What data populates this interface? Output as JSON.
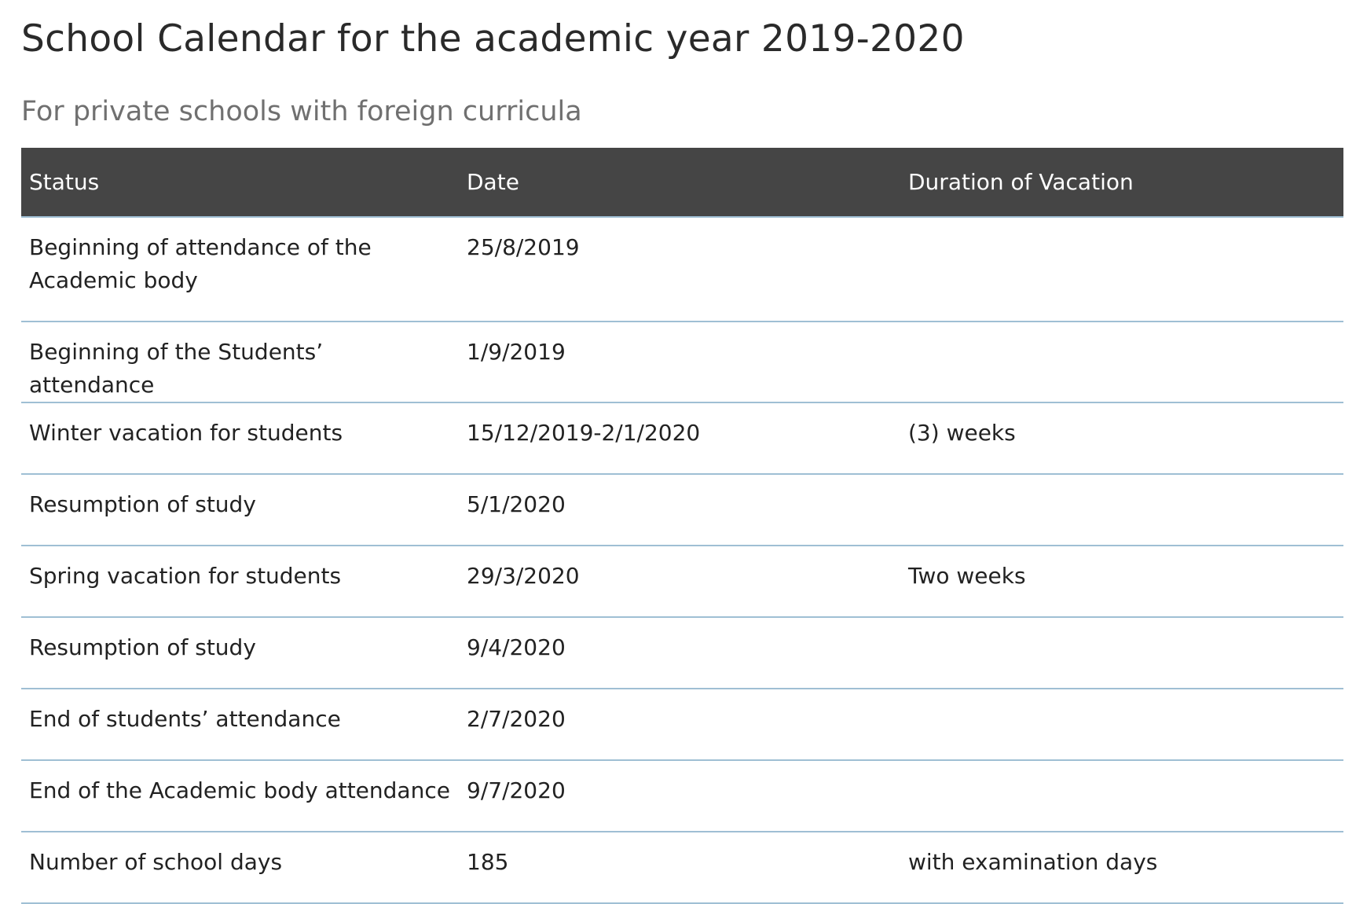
{
  "page": {
    "title": "School Calendar for the academic year 2019-2020",
    "subtitle": "For private schools with foreign curricula"
  },
  "table": {
    "headers": [
      "Status",
      "Date",
      "Duration of Vacation"
    ],
    "rows": [
      {
        "status": "Beginning of attendance of the Academic body",
        "date": "25/8/2019",
        "duration": ""
      },
      {
        "status": "Beginning of the Students’ attendance",
        "date": "1/9/2019",
        "duration": ""
      },
      {
        "status": "Winter vacation for students",
        "date": "15/12/2019-2/1/2020",
        "duration": "(3) weeks"
      },
      {
        "status": "Resumption of study",
        "date": "5/1/2020",
        "duration": ""
      },
      {
        "status": "Spring vacation for students",
        "date": "29/3/2020",
        "duration": "Two weeks"
      },
      {
        "status": "Resumption of study",
        "date": "9/4/2020",
        "duration": ""
      },
      {
        "status": "End of students’ attendance",
        "date": "2/7/2020",
        "duration": ""
      },
      {
        "status": "End of the Academic body attendance",
        "date": "9/7/2020",
        "duration": ""
      },
      {
        "status": "Number of school days",
        "date": "185",
        "duration": "with examination days"
      }
    ]
  },
  "colors": {
    "header_bg": "#454545",
    "header_text": "#ffffff",
    "row_divider": "#9fbfd4",
    "subtitle_text": "#707070"
  }
}
